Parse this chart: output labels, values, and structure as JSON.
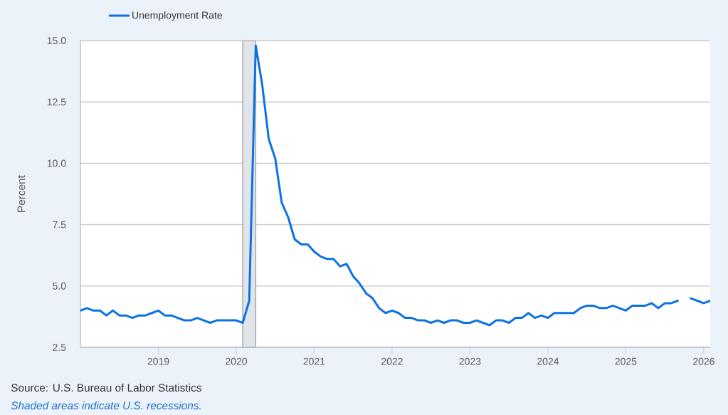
{
  "chart_data": {
    "type": "line",
    "x": [
      "2018-01",
      "2018-02",
      "2018-03",
      "2018-04",
      "2018-05",
      "2018-06",
      "2018-07",
      "2018-08",
      "2018-09",
      "2018-10",
      "2018-11",
      "2018-12",
      "2019-01",
      "2019-02",
      "2019-03",
      "2019-04",
      "2019-05",
      "2019-06",
      "2019-07",
      "2019-08",
      "2019-09",
      "2019-10",
      "2019-11",
      "2019-12",
      "2020-01",
      "2020-02",
      "2020-03",
      "2020-04",
      "2020-05",
      "2020-06",
      "2020-07",
      "2020-08",
      "2020-09",
      "2020-10",
      "2020-11",
      "2020-12",
      "2021-01",
      "2021-02",
      "2021-03",
      "2021-04",
      "2021-05",
      "2021-06",
      "2021-07",
      "2021-08",
      "2021-09",
      "2021-10",
      "2021-11",
      "2021-12",
      "2022-01",
      "2022-02",
      "2022-03",
      "2022-04",
      "2022-05",
      "2022-06",
      "2022-07",
      "2022-08",
      "2022-09",
      "2022-10",
      "2022-11",
      "2022-12",
      "2023-01",
      "2023-02",
      "2023-03",
      "2023-04",
      "2023-05",
      "2023-06",
      "2023-07",
      "2023-08",
      "2023-09",
      "2023-10",
      "2023-11",
      "2023-12",
      "2024-01",
      "2024-02",
      "2024-03",
      "2024-04",
      "2024-05",
      "2024-06",
      "2024-07",
      "2024-08",
      "2024-09",
      "2024-10",
      "2024-11",
      "2024-12",
      "2025-01",
      "2025-02",
      "2025-03",
      "2025-04",
      "2025-05",
      "2025-06",
      "2025-07",
      "2025-08",
      "2025-09",
      "2025-10",
      "2025-11",
      "2025-12",
      "2026-01",
      "2026-02"
    ],
    "series": [
      {
        "name": "Unemployment Rate",
        "color": "#0a72e4",
        "values": [
          4.0,
          4.1,
          4.0,
          4.0,
          3.8,
          4.0,
          3.8,
          3.8,
          3.7,
          3.8,
          3.8,
          3.9,
          4.0,
          3.8,
          3.8,
          3.7,
          3.6,
          3.6,
          3.7,
          3.6,
          3.5,
          3.6,
          3.6,
          3.6,
          3.6,
          3.5,
          4.4,
          14.8,
          13.2,
          11.0,
          10.2,
          8.4,
          7.8,
          6.9,
          6.7,
          6.7,
          6.4,
          6.2,
          6.1,
          6.1,
          5.8,
          5.9,
          5.4,
          5.1,
          4.7,
          4.5,
          4.1,
          3.9,
          4.0,
          3.9,
          3.7,
          3.7,
          3.6,
          3.6,
          3.5,
          3.6,
          3.5,
          3.6,
          3.6,
          3.5,
          3.5,
          3.6,
          3.5,
          3.4,
          3.6,
          3.6,
          3.5,
          3.7,
          3.7,
          3.9,
          3.7,
          3.8,
          3.7,
          3.9,
          3.9,
          3.9,
          3.9,
          4.1,
          4.2,
          4.2,
          4.1,
          4.1,
          4.2,
          4.1,
          4.0,
          4.2,
          4.2,
          4.2,
          4.3,
          4.1,
          4.3,
          4.3,
          4.4,
          null,
          4.5,
          4.4,
          4.3,
          4.4
        ]
      }
    ],
    "ylabel": "Percent",
    "xlim": [
      "2018-01",
      "2026-02"
    ],
    "xticks": [
      "2019",
      "2020",
      "2021",
      "2022",
      "2023",
      "2024",
      "2025",
      "2026"
    ],
    "ylim": [
      2.5,
      15
    ],
    "yticks": [
      2.5,
      {
        "value": 5,
        "label": "5.0"
      },
      7.5,
      {
        "value": 10,
        "label": "10.0"
      },
      12.5,
      {
        "value": 15,
        "label": "15.0"
      }
    ],
    "grid": "y",
    "legend": "top left",
    "bands": [
      {
        "axis": "x",
        "from": "2020-02",
        "to": "2020-04",
        "color": "#e1e5ea"
      }
    ],
    "annotations": [
      "Source: U.S. Bureau of Labor Statistics",
      "Shaded areas indicate U.S. recessions."
    ]
  }
}
